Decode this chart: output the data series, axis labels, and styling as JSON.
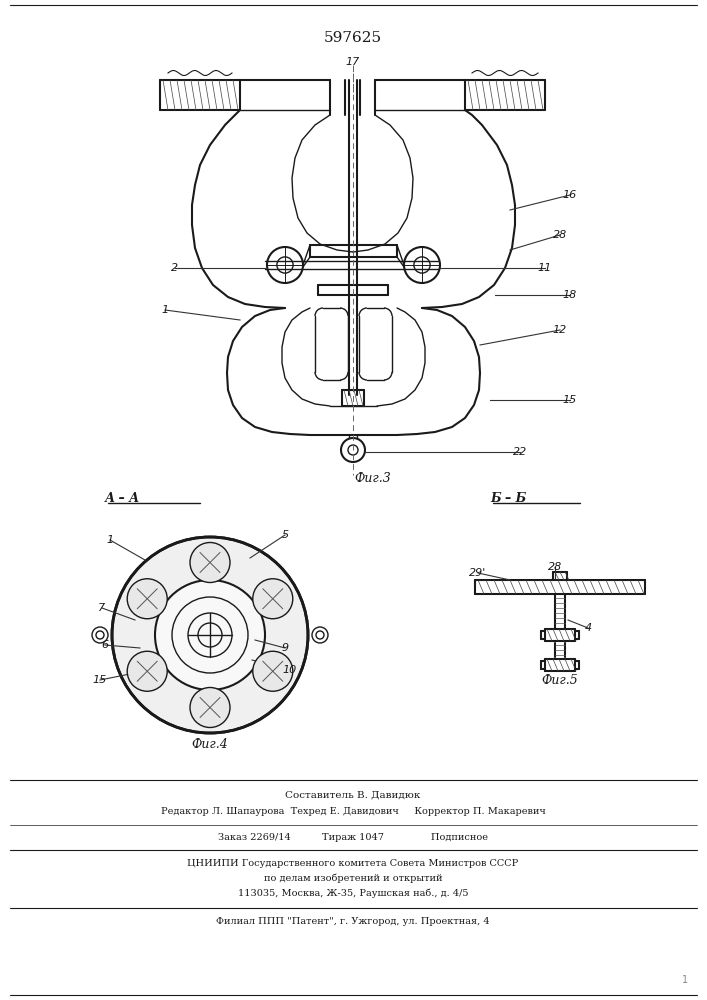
{
  "patent_number": "597625",
  "fig_width": 7.07,
  "fig_height": 10.0,
  "bg_color": "#ffffff",
  "line_color": "#1a1a1a",
  "footer_lines": [
    "Составитель В. Давидюк",
    "Редактор Л. Шапаурова  Техред Е. Давидович     Корректор П. Макаревич",
    "Заказ 2269/14          Тираж 1047               Подписное",
    "ЦНИИПИ Государственного комитета Совета Министров СССР",
    "по делам изобретений и открытий",
    "113035, Москва, Ж-35, Раушская наб., д. 4/5",
    "Филиал ППП \"Патент\", г. Ужгород, ул. Проектная, 4"
  ],
  "section_AA": "А – А",
  "section_BB": "Б – Б",
  "fig3_label": "Фиг.3",
  "fig4_label": "Фиг.4",
  "fig5_label": "Фиг.5"
}
